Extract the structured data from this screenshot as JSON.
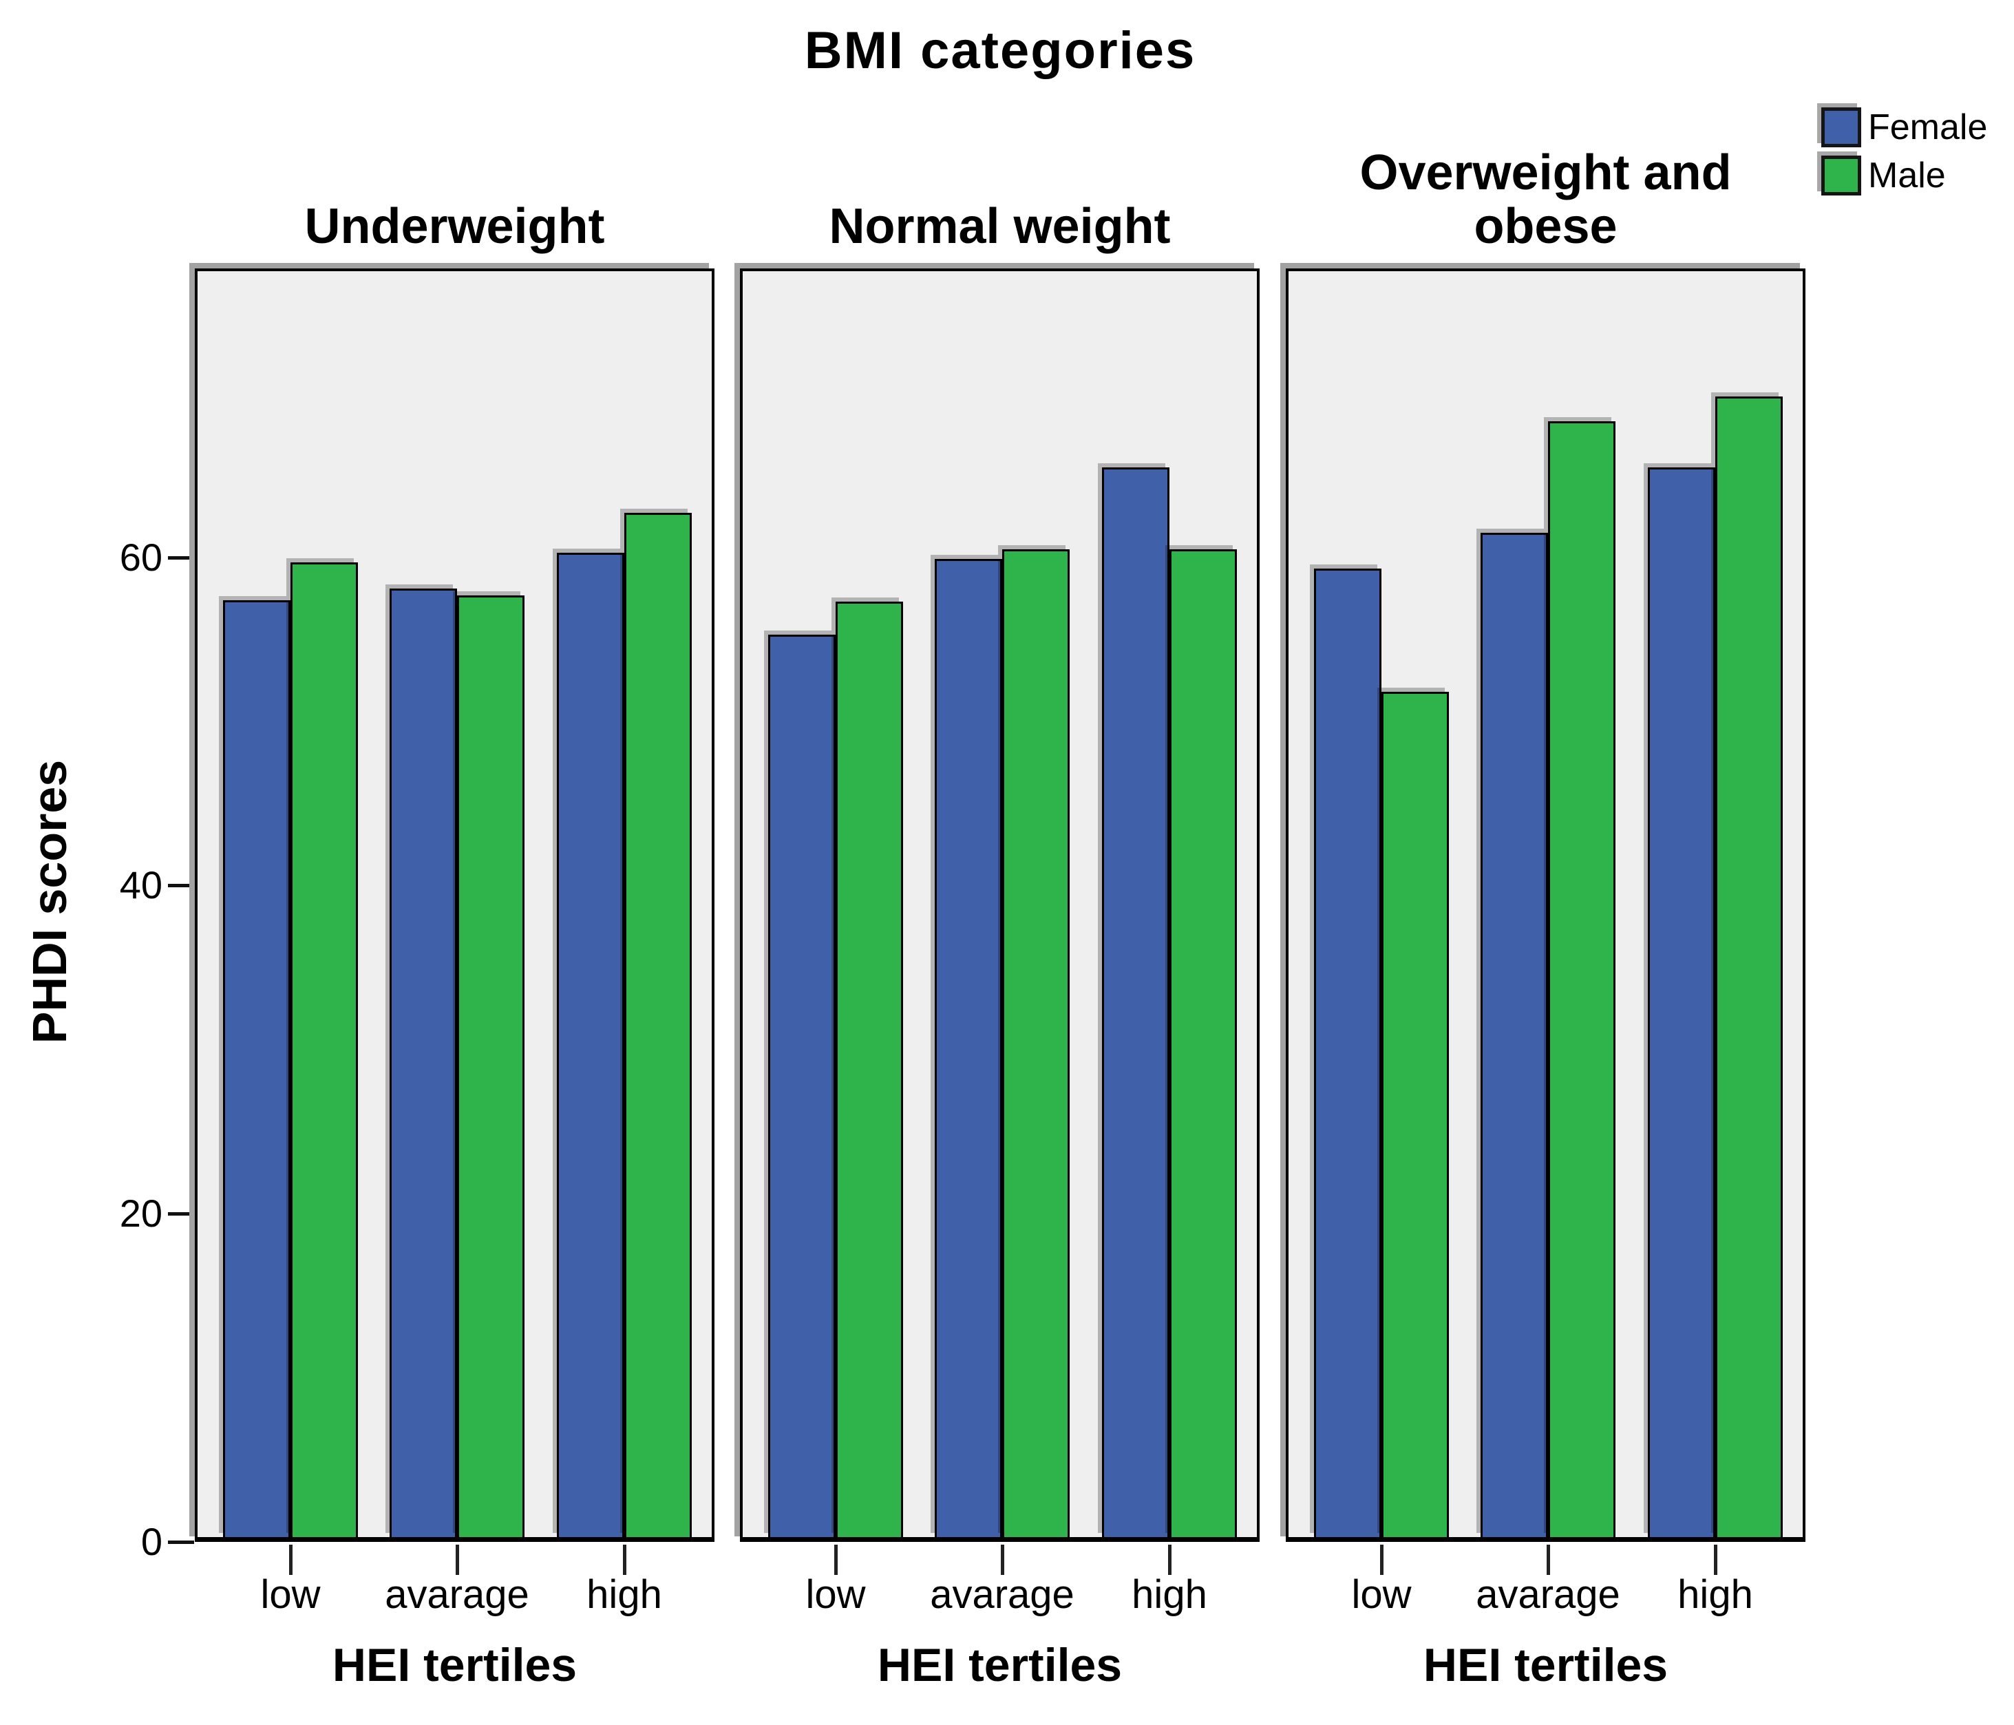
{
  "figure_title": "BMI categories",
  "legend": {
    "items": [
      {
        "label": "Female",
        "color": "#4061A9"
      },
      {
        "label": "Male",
        "color": "#2FB44B"
      }
    ]
  },
  "chart_data": {
    "type": "bar",
    "title": "BMI categories",
    "ylabel": "PHDI scores",
    "xlabel": "HEI tertiles",
    "categories": [
      "low",
      "avarage",
      "high"
    ],
    "yticks": [
      0,
      20,
      40,
      60
    ],
    "ylim": [
      0,
      77.6
    ],
    "grid": false,
    "legend_position": "top-right",
    "panel_background": "#EFEFEF",
    "series_colors": {
      "Female": "#4061A9",
      "Male": "#2FB44B"
    },
    "panels": [
      {
        "title": "Underweight",
        "series": [
          {
            "name": "Female",
            "values": [
              57.1,
              57.8,
              60.0
            ]
          },
          {
            "name": "Male",
            "values": [
              59.4,
              57.4,
              62.4
            ]
          }
        ]
      },
      {
        "title": "Normal weight",
        "series": [
          {
            "name": "Female",
            "values": [
              55.0,
              59.6,
              65.2
            ]
          },
          {
            "name": "Male",
            "values": [
              57.0,
              60.2,
              60.2
            ]
          }
        ]
      },
      {
        "title": "Overweight and obese",
        "series": [
          {
            "name": "Female",
            "values": [
              59.0,
              61.2,
              65.2
            ]
          },
          {
            "name": "Male",
            "values": [
              51.5,
              68.0,
              69.5
            ]
          }
        ]
      }
    ]
  }
}
